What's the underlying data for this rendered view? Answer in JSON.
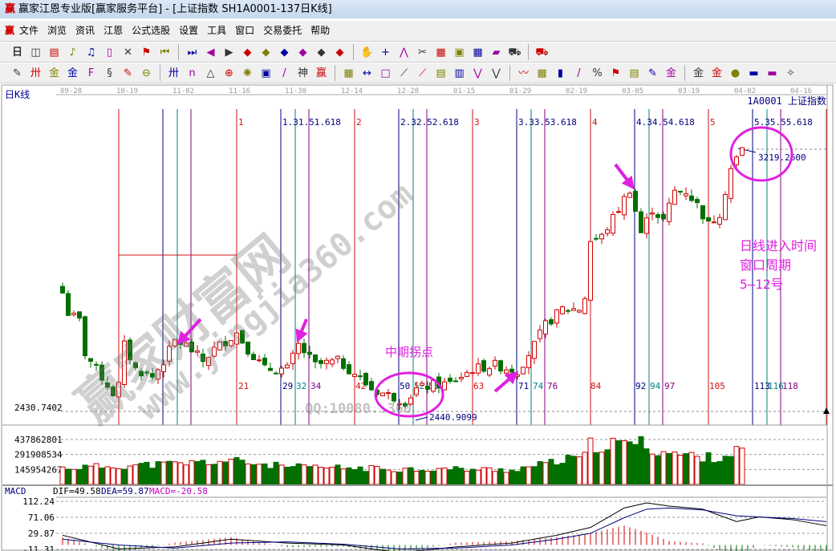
{
  "window": {
    "title": "赢家江恩专业版[赢家服务平台] - [上证指数  SH1A0001-137日K线]",
    "logo": "赢"
  },
  "menu": [
    "文件",
    "浏览",
    "资讯",
    "江恩",
    "公式选股",
    "设置",
    "工具",
    "窗口",
    "交易委托",
    "帮助"
  ],
  "toolbar1": {
    "period": "日",
    "icons": [
      "chart-icon",
      "note-icon",
      "wave3-icon",
      "wave9-icon",
      "candle-icon",
      "gann-icon",
      "flag-icon",
      "first-icon",
      "last-icon",
      "left-icon",
      "right-icon",
      "diamond-left-icon",
      "diamond-right-icon",
      "diamond-h-icon",
      "diamond-x-icon",
      "diamond-star-icon",
      "diamond-v-icon",
      "hand-icon",
      "crosshair-icon",
      "line-icon",
      "clip-icon",
      "grid-icon",
      "cal-icon",
      "calc-icon",
      "record-icon",
      "car-icon",
      "truck-icon"
    ]
  },
  "toolbar2": {
    "icons": [
      "pen-icon",
      "hash-icon",
      "gold1-icon",
      "gold2-icon",
      "f-icon",
      "spiral-icon",
      "brush-icon",
      "circle-icon",
      "hash2-icon",
      "n2-icon",
      "triangle-icon",
      "target-icon",
      "sun-icon",
      "box-icon",
      "slash-icon",
      "shen-icon",
      "ying-icon",
      "ruler-icon",
      "width-icon",
      "rect-icon",
      "fan-icon",
      "fan2-icon",
      "chart2-icon",
      "bars-icon",
      "zigzag-icon",
      "zigzag2-icon",
      "wave-icon",
      "cube-icon",
      "bar-icon",
      "slash2-icon",
      "percent-icon",
      "flag2-icon",
      "list-icon",
      "pen2-icon",
      "gold3-icon",
      "gold4-icon",
      "gold5-icon",
      "dot-icon",
      "ruler2-icon",
      "ruler3-icon",
      "pin-icon"
    ]
  },
  "chart": {
    "period_label": "日K线",
    "symbol": "1A0001  上证指数",
    "dates": [
      "09-28",
      "10-19",
      "11-02",
      "11-16",
      "11-30",
      "12-14",
      "12-28",
      "01-15",
      "01-29",
      "02-19",
      "03-05",
      "03-19",
      "04-02",
      "04-16"
    ],
    "cycle_markers": [
      "1",
      "2",
      "3",
      "4",
      "5"
    ],
    "fib_labels": [
      "1.31.51.618",
      "2.32.52.618",
      "3.33.53.618",
      "4.34.54.618",
      "5.35.55.618"
    ],
    "bar_counts": [
      "21",
      "29",
      "32",
      "34",
      "42",
      "50",
      "52",
      "55",
      "63",
      "71",
      "74",
      "76",
      "84",
      "92",
      "94",
      "97",
      "105",
      "113",
      "116",
      "118"
    ],
    "low_axis_label": "2430.7402",
    "high_price": "3219.2600",
    "low_price": "2440.9099",
    "annotation_main": [
      "日线进入时间",
      "窗口周期",
      "5—12号"
    ],
    "annotation_pivot": "中期拐点",
    "watermark": "赢家财富网",
    "watermark_url": "www.yingjia360.com",
    "watermark_qq": "QQ:10080..360",
    "price_range": [
      2430.7402,
      3219.26
    ],
    "close_keypoints": [
      [
        -10,
        2787
      ],
      [
        -9,
        2727
      ],
      [
        -7,
        2703
      ],
      [
        -6,
        2606
      ],
      [
        -4,
        2558
      ],
      [
        -1,
        2486
      ],
      [
        0,
        2510
      ],
      [
        1,
        2630
      ],
      [
        3,
        2558
      ],
      [
        6,
        2534
      ],
      [
        8,
        2582
      ],
      [
        10,
        2643
      ],
      [
        12,
        2630
      ],
      [
        15,
        2582
      ],
      [
        17,
        2618
      ],
      [
        21,
        2667
      ],
      [
        23,
        2618
      ],
      [
        26,
        2558
      ],
      [
        30,
        2558
      ],
      [
        32,
        2630
      ],
      [
        35,
        2570
      ],
      [
        39,
        2582
      ],
      [
        42,
        2546
      ],
      [
        45,
        2498
      ],
      [
        49,
        2474
      ],
      [
        51,
        2461
      ],
      [
        53,
        2498
      ],
      [
        56,
        2510
      ],
      [
        59,
        2515
      ],
      [
        63,
        2558
      ],
      [
        67,
        2570
      ],
      [
        71,
        2553
      ],
      [
        74,
        2630
      ],
      [
        76,
        2691
      ],
      [
        79,
        2739
      ],
      [
        82,
        2739
      ],
      [
        83,
        2775
      ],
      [
        84,
        2944
      ],
      [
        86,
        2956
      ],
      [
        89,
        3040
      ],
      [
        91,
        3100
      ],
      [
        93,
        2968
      ],
      [
        95,
        3040
      ],
      [
        97,
        3004
      ],
      [
        99,
        3093
      ],
      [
        101,
        3093
      ],
      [
        103,
        3052
      ],
      [
        105,
        2992
      ],
      [
        107,
        3028
      ],
      [
        109,
        3161
      ],
      [
        111,
        3219
      ]
    ]
  },
  "volume": {
    "axis": [
      "437862801",
      "291908534",
      "145954267"
    ],
    "axis_values": [
      437862801,
      291908534,
      145954267
    ],
    "keypoints": [
      [
        -10,
        160
      ],
      [
        0,
        180
      ],
      [
        10,
        200
      ],
      [
        20,
        230
      ],
      [
        30,
        170
      ],
      [
        40,
        160
      ],
      [
        50,
        150
      ],
      [
        60,
        150
      ],
      [
        70,
        140
      ],
      [
        76,
        200
      ],
      [
        83,
        270
      ],
      [
        84,
        380
      ],
      [
        90,
        390
      ],
      [
        92,
        420
      ],
      [
        96,
        330
      ],
      [
        100,
        290
      ],
      [
        105,
        260
      ],
      [
        108,
        280
      ],
      [
        111,
        340
      ]
    ]
  },
  "macd": {
    "title": "MACD",
    "dif_label": "DIF=49.58",
    "dea_label": "DEA=59.87",
    "macd_label": "MACD=-20.58",
    "axis": [
      "112.24",
      "71.06",
      "29.87",
      "-11.31"
    ],
    "axis_values": [
      112.24,
      71.06,
      29.87,
      -11.31
    ],
    "dif": [
      [
        -10,
        25
      ],
      [
        0,
        -10
      ],
      [
        10,
        -5
      ],
      [
        20,
        15
      ],
      [
        30,
        5
      ],
      [
        40,
        0
      ],
      [
        50,
        -20
      ],
      [
        60,
        -5
      ],
      [
        70,
        5
      ],
      [
        78,
        25
      ],
      [
        84,
        45
      ],
      [
        90,
        95
      ],
      [
        94,
        108
      ],
      [
        98,
        100
      ],
      [
        104,
        92
      ],
      [
        110,
        60
      ],
      [
        114,
        72
      ],
      [
        120,
        65
      ],
      [
        126,
        49.58
      ]
    ],
    "dea": [
      [
        -10,
        15
      ],
      [
        0,
        0
      ],
      [
        10,
        -8
      ],
      [
        20,
        5
      ],
      [
        30,
        8
      ],
      [
        40,
        2
      ],
      [
        50,
        -10
      ],
      [
        60,
        -8
      ],
      [
        70,
        0
      ],
      [
        78,
        15
      ],
      [
        84,
        30
      ],
      [
        90,
        70
      ],
      [
        94,
        92
      ],
      [
        98,
        95
      ],
      [
        104,
        90
      ],
      [
        110,
        75
      ],
      [
        114,
        72
      ],
      [
        120,
        68
      ],
      [
        126,
        59.87
      ]
    ]
  },
  "colors": {
    "up": "#d00000",
    "down": "#007000",
    "cycle_red": "#d01010",
    "blue": "#000080",
    "teal": "#008080",
    "purple": "#800080",
    "magenta": "#e020e0"
  }
}
